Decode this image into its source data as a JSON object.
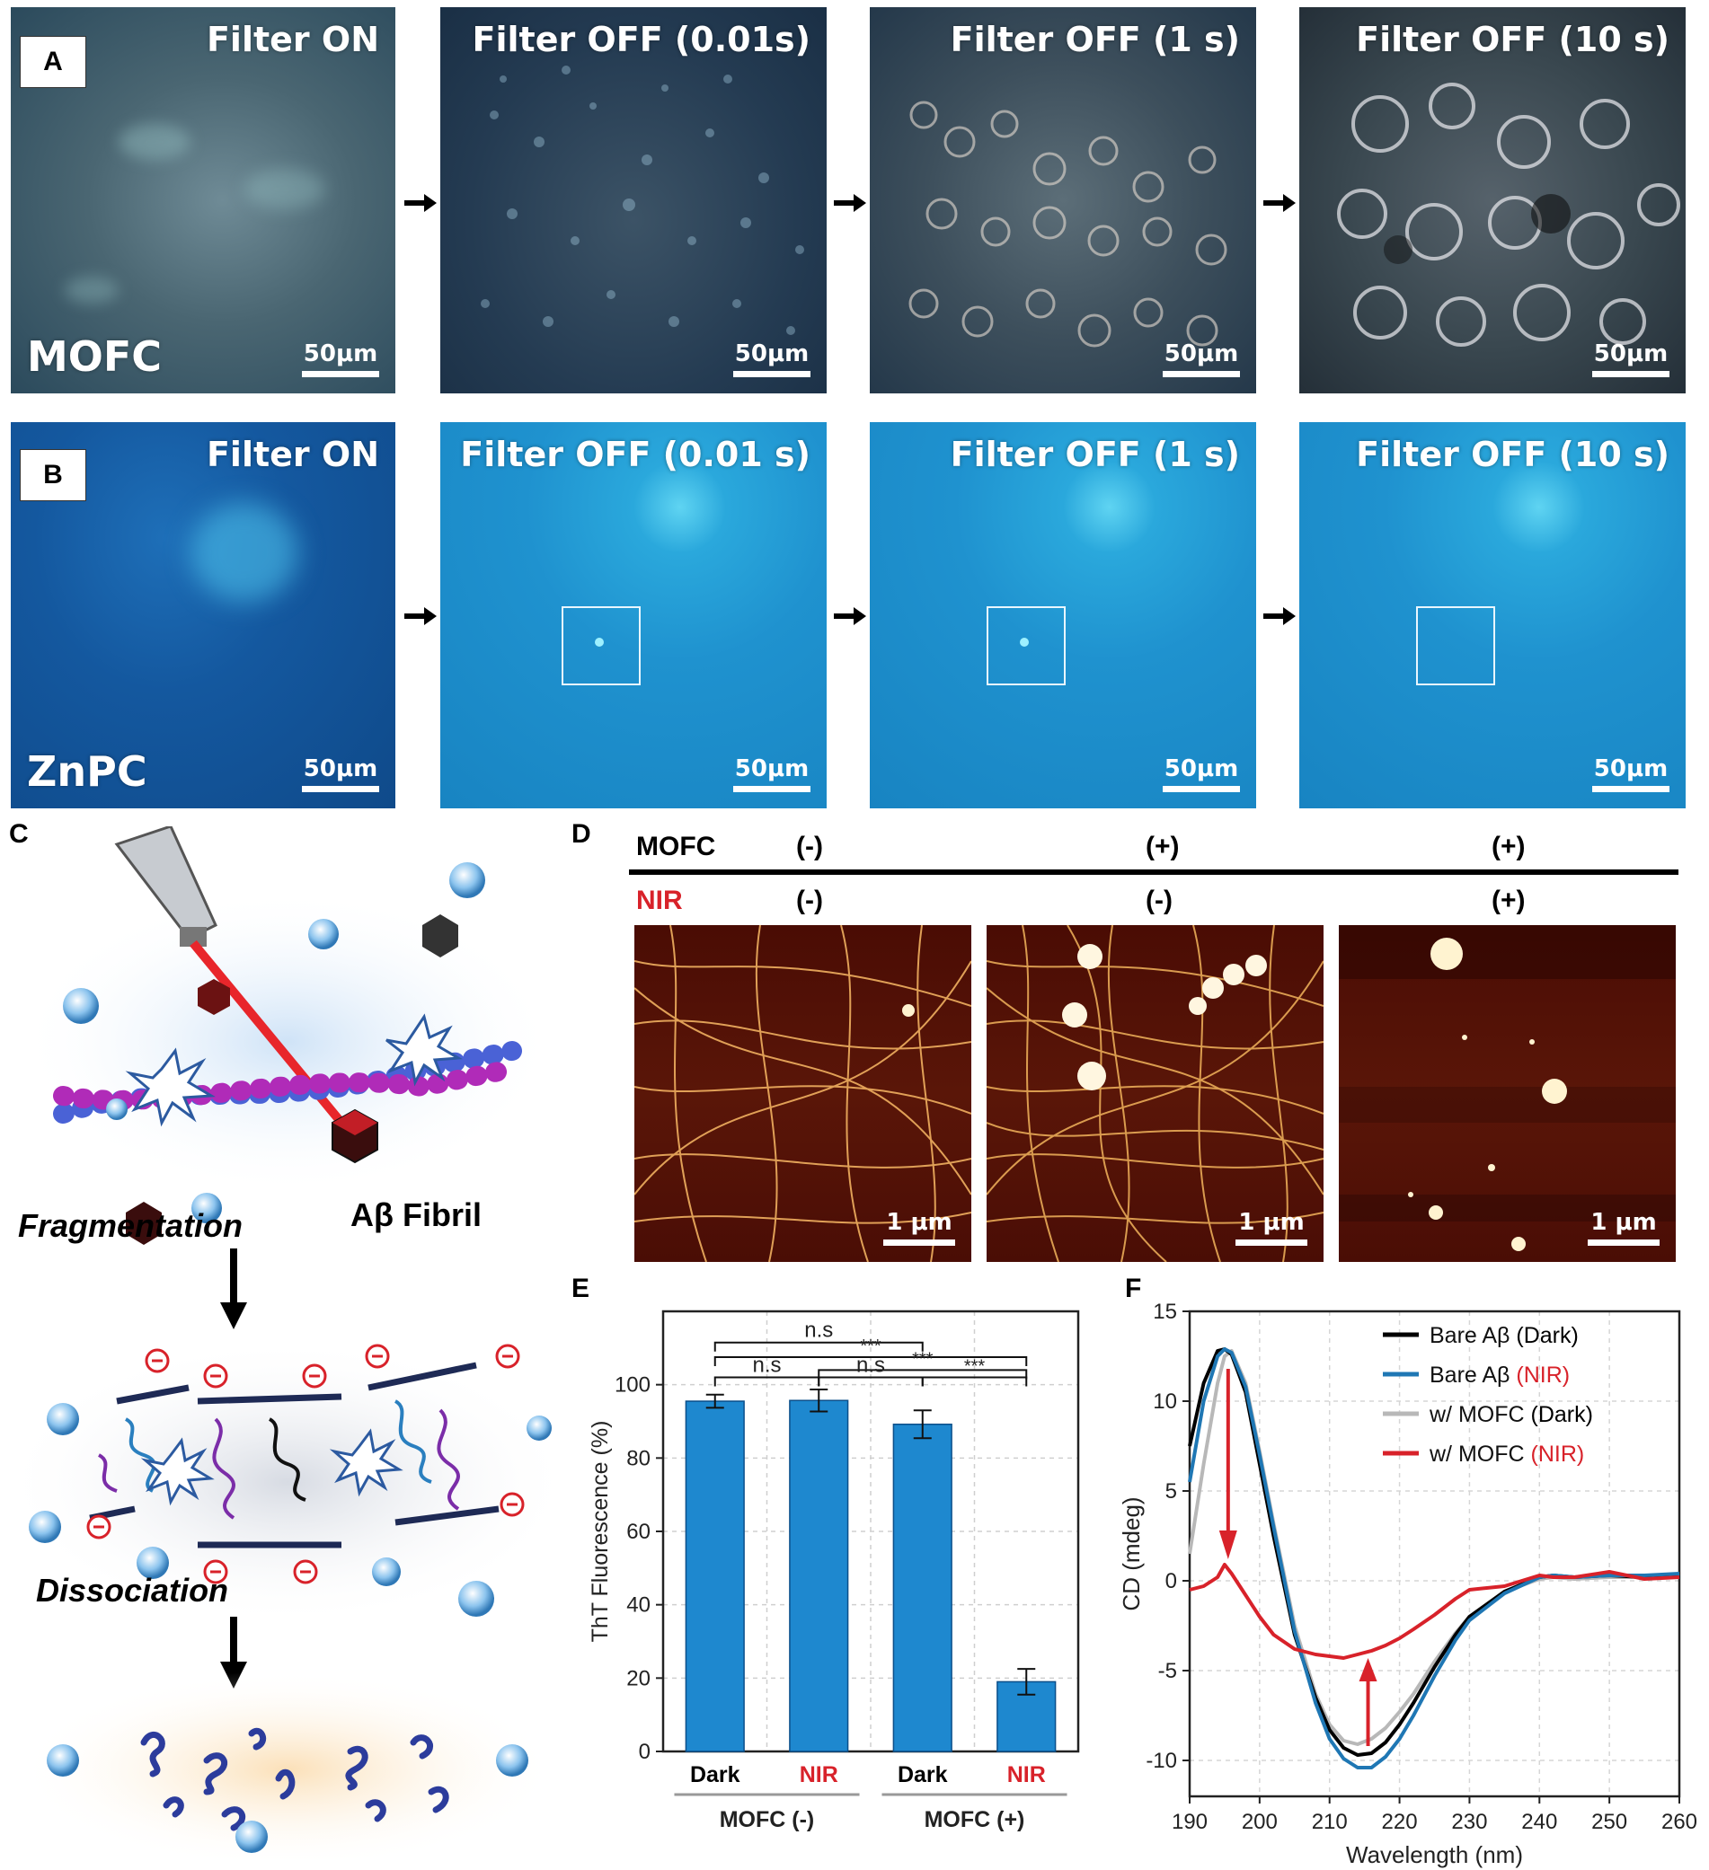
{
  "panels": {
    "A": {
      "letter": "A",
      "sample": "MOFC",
      "scale": "50μm",
      "frames": [
        "Filter ON",
        "Filter OFF (0.01s)",
        "Filter OFF (1 s)",
        "Filter OFF (10 s)"
      ]
    },
    "B": {
      "letter": "B",
      "sample": "ZnPC",
      "scale": "50μm",
      "frames": [
        "Filter ON",
        "Filter OFF (0.01 s)",
        "Filter OFF (1 s)",
        "Filter OFF (10 s)"
      ]
    },
    "C": {
      "letter": "C",
      "fibril_label": "Aβ Fibril",
      "step1": "Fragmentation",
      "step2": "Dissociation"
    },
    "D": {
      "letter": "D",
      "row1_label": "MOFC",
      "row2_label": "NIR",
      "row1": [
        "(-)",
        "(+)",
        "(+)"
      ],
      "row2": [
        "(-)",
        "(-)",
        "(+)"
      ],
      "scale": "1 μm"
    },
    "E": {
      "letter": "E"
    },
    "F": {
      "letter": "F"
    }
  },
  "chart_data": [
    {
      "type": "bar",
      "panel": "E",
      "categories": [
        "Dark",
        "NIR",
        "Dark",
        "NIR"
      ],
      "category_colors": [
        "#000000",
        "#d8222a",
        "#000000",
        "#d8222a"
      ],
      "groups": [
        "MOFC (-)",
        "MOFC (+)"
      ],
      "values": [
        95.5,
        95.7,
        89.2,
        19.0
      ],
      "errors": [
        1.8,
        3.0,
        3.8,
        3.5
      ],
      "ylabel": "ThT Fluorescence (%)",
      "ylim": [
        0,
        120
      ],
      "yticks": [
        0,
        20,
        40,
        60,
        80,
        100
      ],
      "bar_color": "#1e88cf",
      "significance": [
        {
          "from": 0,
          "to": 2,
          "label": "n.s"
        },
        {
          "from": 0,
          "to": 3,
          "label": "***"
        },
        {
          "from": 1,
          "to": 3,
          "label": "***"
        },
        {
          "from": 0,
          "to": 1,
          "label": "n.s"
        },
        {
          "from": 1,
          "to": 2,
          "label": "n.s"
        },
        {
          "from": 2,
          "to": 3,
          "label": "***"
        }
      ],
      "grid": true
    },
    {
      "type": "line",
      "panel": "F",
      "xlabel": "Wavelength (nm)",
      "ylabel": "CD (mdeg)",
      "xlim": [
        190,
        260
      ],
      "ylim": [
        -12,
        15
      ],
      "xticks": [
        190,
        200,
        210,
        220,
        230,
        240,
        250,
        260
      ],
      "yticks": [
        -10,
        -5,
        0,
        5,
        10,
        15
      ],
      "legend": "top-right",
      "grid": true,
      "series": [
        {
          "name": "Bare Aβ",
          "suffix": "(Dark)",
          "suffix_color": "#000000",
          "color": "#000000",
          "x": [
            190,
            192,
            194,
            195,
            196,
            198,
            200,
            202,
            205,
            208,
            210,
            212,
            214,
            216,
            218,
            220,
            222,
            225,
            228,
            230,
            235,
            240,
            242,
            245,
            250,
            255,
            260
          ],
          "y": [
            7.5,
            11.0,
            12.8,
            12.9,
            12.6,
            10.5,
            6.5,
            2.5,
            -3.0,
            -6.5,
            -8.3,
            -9.3,
            -9.7,
            -9.6,
            -9.0,
            -8.0,
            -6.8,
            -4.8,
            -3.0,
            -2.0,
            -0.6,
            0.2,
            0.3,
            0.2,
            0.3,
            0.2,
            0.3
          ]
        },
        {
          "name": "Bare Aβ",
          "suffix": "(NIR)",
          "suffix_color": "#d8222a",
          "color": "#1f77b4",
          "x": [
            190,
            192,
            194,
            195,
            196,
            198,
            200,
            202,
            205,
            208,
            210,
            212,
            214,
            216,
            218,
            220,
            222,
            225,
            228,
            230,
            235,
            240,
            242,
            245,
            250,
            255,
            260
          ],
          "y": [
            5.5,
            10.0,
            12.5,
            12.9,
            12.7,
            10.8,
            7.0,
            3.0,
            -2.8,
            -6.8,
            -8.8,
            -9.9,
            -10.4,
            -10.4,
            -9.8,
            -8.8,
            -7.5,
            -5.3,
            -3.3,
            -2.2,
            -0.7,
            0.2,
            0.3,
            0.2,
            0.3,
            0.3,
            0.4
          ]
        },
        {
          "name": "w/ MOFC",
          "suffix": "(Dark)",
          "suffix_color": "#000000",
          "color": "#b8b8b8",
          "x": [
            190,
            192,
            194,
            195,
            196,
            198,
            200,
            202,
            205,
            208,
            210,
            212,
            214,
            216,
            218,
            220,
            222,
            225,
            228,
            230,
            235,
            240,
            242,
            245,
            250,
            255,
            260
          ],
          "y": [
            1.5,
            6.5,
            11.0,
            12.5,
            12.8,
            11.0,
            7.2,
            3.2,
            -2.5,
            -6.3,
            -8.0,
            -8.9,
            -9.1,
            -8.8,
            -8.2,
            -7.3,
            -6.3,
            -4.5,
            -2.9,
            -2.0,
            -0.6,
            0.1,
            0.2,
            0.1,
            0.2,
            0.2,
            0.2
          ]
        },
        {
          "name": "w/ MOFC",
          "suffix": "(NIR)",
          "suffix_color": "#d8222a",
          "color": "#d8222a",
          "x": [
            190,
            192,
            194,
            195,
            196,
            198,
            200,
            202,
            205,
            208,
            210,
            212,
            214,
            216,
            218,
            220,
            222,
            225,
            228,
            230,
            235,
            240,
            242,
            245,
            250,
            255,
            260
          ],
          "y": [
            -0.5,
            -0.3,
            0.2,
            0.9,
            0.4,
            -0.8,
            -2.0,
            -3.0,
            -3.8,
            -4.1,
            -4.2,
            -4.3,
            -4.1,
            -3.9,
            -3.6,
            -3.2,
            -2.7,
            -1.9,
            -1.0,
            -0.5,
            -0.3,
            0.3,
            0.2,
            0.2,
            0.5,
            0.1,
            0.2
          ]
        }
      ]
    }
  ]
}
